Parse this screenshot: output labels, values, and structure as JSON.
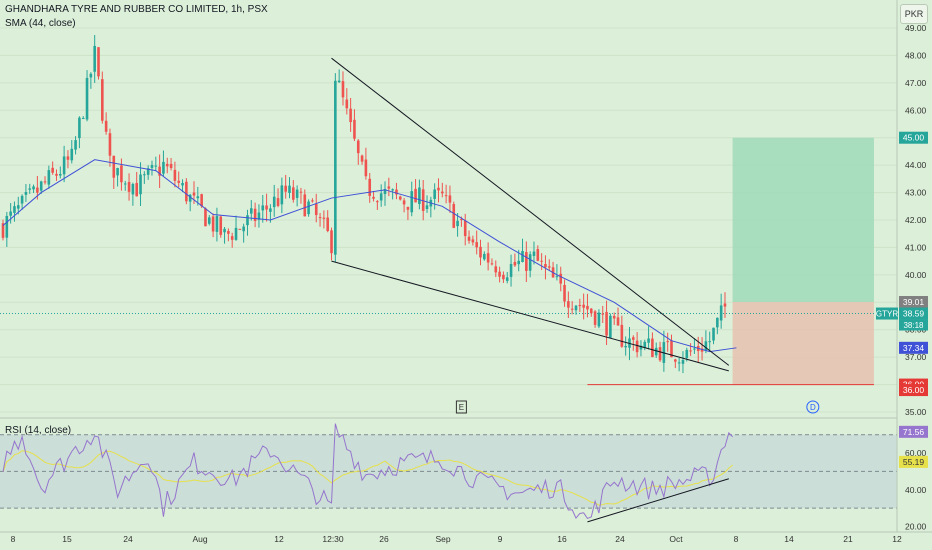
{
  "header": {
    "symbol_title": "GHANDHARA TYRE AND RUBBER CO LIMITED, 1h, PSX",
    "sma_legend": "SMA (44, close)",
    "rsi_legend": "RSI (14, close)",
    "currency": "PKR"
  },
  "colors": {
    "background": "#dcefd8",
    "up_candle": "#26a69a",
    "down_candle": "#ef5350",
    "sma_line": "#3f51d6",
    "rsi_line": "#9575cd",
    "rsi_ma_line": "#e6e04a",
    "target_zone": "#9fd9b9",
    "stop_zone": "#e8c1b0",
    "support_line": "#e53935",
    "trend_lines": "#131722"
  },
  "chart_data": [
    {
      "type": "candlestick",
      "title": "GHANDHARA TYRE AND RUBBER CO LIMITED, 1h, PSX",
      "ylim": [
        34.5,
        49.5
      ],
      "price_ticks": [
        "49.00",
        "48.00",
        "47.00",
        "46.00",
        "45.00",
        "44.00",
        "43.00",
        "42.00",
        "41.00",
        "40.00",
        "39.00",
        "38.00",
        "37.00",
        "36.00",
        "35.00"
      ],
      "time_ticks": [
        "8",
        "15",
        "24",
        "Aug",
        "12",
        "12:30",
        "26",
        "Sep",
        "9",
        "16",
        "24",
        "Oct",
        "8",
        "14",
        "21",
        "12"
      ],
      "anchor_prices": [
        {
          "bar": 0,
          "price": 41.8
        },
        {
          "bar": 10,
          "price": 43.2
        },
        {
          "bar": 18,
          "price": 44.2
        },
        {
          "bar": 24,
          "price": 48.0
        },
        {
          "bar": 28,
          "price": 44.0
        },
        {
          "bar": 35,
          "price": 43.2
        },
        {
          "bar": 42,
          "price": 44.0
        },
        {
          "bar": 50,
          "price": 42.6
        },
        {
          "bar": 58,
          "price": 41.4
        },
        {
          "bar": 66,
          "price": 42.1
        },
        {
          "bar": 74,
          "price": 43.0
        },
        {
          "bar": 80,
          "price": 42.5
        },
        {
          "bar": 86,
          "price": 41.2
        },
        {
          "bar": 87,
          "price": 47.3
        },
        {
          "bar": 90,
          "price": 45.8
        },
        {
          "bar": 95,
          "price": 43.2
        },
        {
          "bar": 105,
          "price": 42.7
        },
        {
          "bar": 115,
          "price": 42.8
        },
        {
          "bar": 123,
          "price": 41.0
        },
        {
          "bar": 131,
          "price": 40.2
        },
        {
          "bar": 139,
          "price": 40.6
        },
        {
          "bar": 147,
          "price": 39.3
        },
        {
          "bar": 155,
          "price": 38.6
        },
        {
          "bar": 163,
          "price": 37.6
        },
        {
          "bar": 171,
          "price": 37.3
        },
        {
          "bar": 179,
          "price": 37.1
        },
        {
          "bar": 185,
          "price": 37.6
        },
        {
          "bar": 189,
          "price": 38.8
        }
      ],
      "sma": {
        "name": "SMA (44, close)",
        "points": [
          {
            "bar": 0,
            "price": 41.8
          },
          {
            "bar": 10,
            "price": 43.0
          },
          {
            "bar": 24,
            "price": 44.2
          },
          {
            "bar": 40,
            "price": 43.8
          },
          {
            "bar": 55,
            "price": 42.2
          },
          {
            "bar": 70,
            "price": 42.0
          },
          {
            "bar": 86,
            "price": 42.8
          },
          {
            "bar": 100,
            "price": 43.1
          },
          {
            "bar": 115,
            "price": 42.5
          },
          {
            "bar": 130,
            "price": 41.2
          },
          {
            "bar": 145,
            "price": 40.0
          },
          {
            "bar": 160,
            "price": 39.0
          },
          {
            "bar": 175,
            "price": 37.6
          },
          {
            "bar": 185,
            "price": 37.2
          },
          {
            "bar": 192,
            "price": 37.34
          }
        ]
      },
      "trendlines": [
        {
          "from": {
            "bar": 86,
            "price": 47.9
          },
          "to": {
            "bar": 190,
            "price": 36.7
          }
        },
        {
          "from": {
            "bar": 86,
            "price": 40.5
          },
          "to": {
            "bar": 190,
            "price": 36.5
          }
        }
      ],
      "support_level": {
        "price": 36.0,
        "from_bar": 153,
        "to_bar": 228
      },
      "position": {
        "entry": 39.01,
        "target": 45.0,
        "stop": 36.0,
        "from_bar": 191,
        "to_bar": 228
      },
      "price_labels": [
        {
          "text": "45.00",
          "price": 45.0,
          "color": "#26a69a"
        },
        {
          "text": "39.01",
          "price": 39.01,
          "color": "#808080"
        },
        {
          "text": "38.59",
          "price": 38.59,
          "color": "#26a69a",
          "tag": "GTYR",
          "countdown": "38:18"
        },
        {
          "text": "37.34",
          "price": 37.34,
          "color": "#3f51d6"
        },
        {
          "text": "36.00",
          "price": 36.0,
          "color": "#e53935"
        },
        {
          "text": "36.00",
          "price": 35.8,
          "color": "#e53935"
        }
      ],
      "markers": [
        {
          "text": "E",
          "bar": 120
        },
        {
          "text": "D",
          "bar": 212
        }
      ]
    },
    {
      "type": "line",
      "title": "RSI (14, close)",
      "ylim": [
        17,
        78
      ],
      "ticks": [
        "60.00",
        "40.00",
        "20.00"
      ],
      "bands": {
        "upper": 70,
        "middle": 50,
        "lower": 30
      },
      "anchor_values": [
        {
          "bar": 0,
          "value": 55
        },
        {
          "bar": 5,
          "value": 70
        },
        {
          "bar": 10,
          "value": 42
        },
        {
          "bar": 18,
          "value": 60
        },
        {
          "bar": 24,
          "value": 72
        },
        {
          "bar": 30,
          "value": 40
        },
        {
          "bar": 38,
          "value": 60
        },
        {
          "bar": 42,
          "value": 31
        },
        {
          "bar": 50,
          "value": 55
        },
        {
          "bar": 60,
          "value": 45
        },
        {
          "bar": 70,
          "value": 62
        },
        {
          "bar": 80,
          "value": 42
        },
        {
          "bar": 86,
          "value": 30
        },
        {
          "bar": 87,
          "value": 73
        },
        {
          "bar": 95,
          "value": 48
        },
        {
          "bar": 105,
          "value": 55
        },
        {
          "bar": 115,
          "value": 57
        },
        {
          "bar": 125,
          "value": 44
        },
        {
          "bar": 135,
          "value": 38
        },
        {
          "bar": 145,
          "value": 42
        },
        {
          "bar": 153,
          "value": 23
        },
        {
          "bar": 160,
          "value": 46
        },
        {
          "bar": 170,
          "value": 40
        },
        {
          "bar": 180,
          "value": 46
        },
        {
          "bar": 186,
          "value": 48
        },
        {
          "bar": 189,
          "value": 68
        },
        {
          "bar": 191,
          "value": 72
        }
      ],
      "trendline": {
        "from": {
          "bar": 153,
          "value": 22.5
        },
        "to": {
          "bar": 190,
          "value": 46
        }
      },
      "value_labels": [
        {
          "text": "71.56",
          "value": 71.56,
          "color": "#9575cd"
        },
        {
          "text": "55.19",
          "value": 55.19,
          "color": "#e6e04a"
        }
      ]
    }
  ]
}
